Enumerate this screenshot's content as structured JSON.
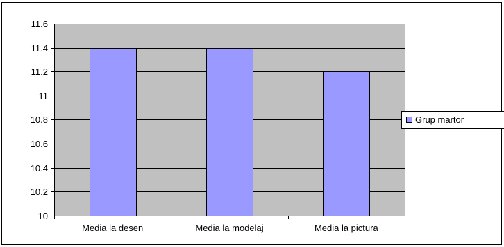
{
  "chart_data": {
    "type": "bar",
    "categories": [
      "Media la desen",
      "Media la modelaj",
      "Media la pictura"
    ],
    "series": [
      {
        "name": "Grup martor",
        "values": [
          11.4,
          11.4,
          11.2
        ],
        "color": "#9999ff"
      }
    ],
    "ylim": [
      10,
      11.6
    ],
    "yticks": [
      10,
      10.2,
      10.4,
      10.6,
      10.8,
      11,
      11.2,
      11.4,
      11.6
    ],
    "ytick_labels": [
      "10",
      "10.2",
      "10.4",
      "10.6",
      "10.8",
      "11",
      "11.2",
      "11.4",
      "11.6"
    ],
    "grid": true,
    "legend_position": "right",
    "plot_background": "#c0c0c0"
  }
}
